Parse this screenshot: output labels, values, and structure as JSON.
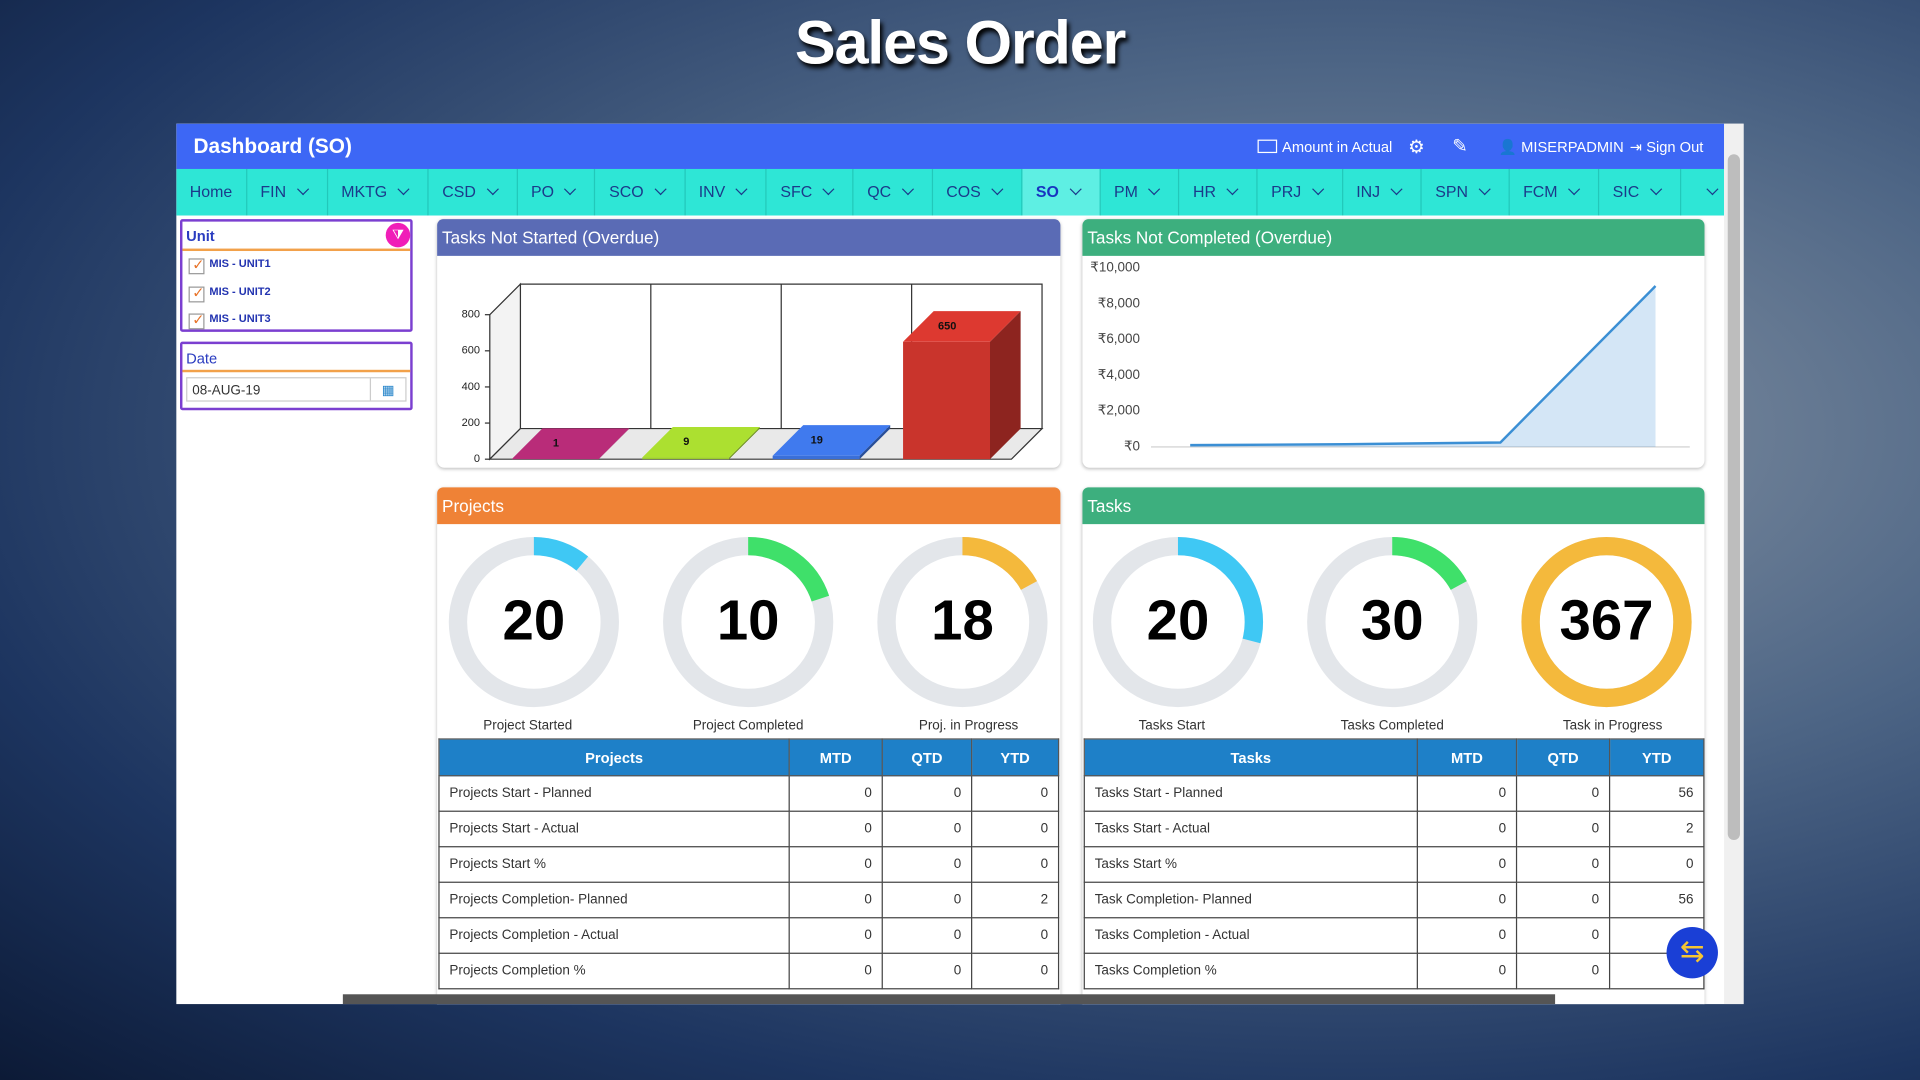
{
  "page_title": "Sales Order",
  "header": {
    "title": "Dashboard (SO)",
    "amount": "Amount in Actual",
    "user": "MISERPADMIN",
    "sign_out": "Sign Out"
  },
  "nav": {
    "items": [
      "Home",
      "FIN",
      "MKTG",
      "CSD",
      "PO",
      "SCO",
      "INV",
      "SFC",
      "QC",
      "COS",
      "SO",
      "PM",
      "HR",
      "PRJ",
      "INJ",
      "SPN",
      "FCM",
      "SIC"
    ],
    "active": 10
  },
  "filters": {
    "unit_label": "Unit",
    "units": [
      "MIS - UNIT1",
      "MIS - UNIT2",
      "MIS - UNIT3"
    ],
    "date_label": "Date",
    "date_value": "08-AUG-19"
  },
  "charts": [
    {
      "type": "bar3d",
      "title": "Tasks Not Started (Overdue)",
      "categories": [
        null,
        null,
        null,
        null
      ],
      "values": [
        1,
        9,
        19,
        650
      ],
      "colors": [
        "#a8286e",
        "#9ccc2c",
        "#3a6fd8",
        "#c9342c"
      ],
      "ylim": [
        0,
        800
      ],
      "yticks": [
        0,
        200,
        400,
        600,
        800
      ]
    },
    {
      "type": "line",
      "title": "Tasks Not Completed (Overdue)",
      "categories": [
        null,
        null,
        null,
        null
      ],
      "values": [
        100,
        150,
        250,
        9000
      ],
      "color": "#3b8fd4",
      "ylim": [
        0,
        10000
      ],
      "yticks": [
        {
          "value": 0,
          "label": "₹0"
        },
        {
          "value": 2000,
          "label": "₹2,000"
        },
        {
          "value": 4000,
          "label": "₹4,000"
        },
        {
          "value": 6000,
          "label": "₹6,000"
        },
        {
          "value": 8000,
          "label": "₹8,000"
        },
        {
          "value": 10000,
          "label": "₹10,000"
        }
      ]
    }
  ],
  "panels": [
    {
      "title": "Projects",
      "gauges": [
        {
          "value": 20,
          "label": "Project Started",
          "fill_percent": 11,
          "color": "#3fc8f4"
        },
        {
          "value": 10,
          "label": "Project Completed",
          "fill_percent": 20,
          "color": "#3fe06a"
        },
        {
          "value": 18,
          "label": "Proj. in Progress",
          "fill_percent": 17,
          "color": "#f4b93c"
        }
      ]
    },
    {
      "title": "Tasks",
      "gauges": [
        {
          "value": 20,
          "label": "Tasks Start",
          "fill_percent": 29,
          "color": "#3fc8f4"
        },
        {
          "value": 30,
          "label": "Tasks Completed",
          "fill_percent": 17,
          "color": "#3fe06a"
        },
        {
          "value": 367,
          "label": "Task in Progress",
          "fill_percent": 100,
          "color": "#f4b93c"
        }
      ]
    }
  ],
  "tables": [
    {
      "columns": [
        "Projects",
        "MTD",
        "QTD",
        "YTD"
      ],
      "rows": [
        [
          "Projects Start - Planned",
          0,
          0,
          0
        ],
        [
          "Projects Start - Actual",
          0,
          0,
          0
        ],
        [
          "Projects Start %",
          0,
          0,
          0
        ],
        [
          "Projects Completion- Planned",
          0,
          0,
          2
        ],
        [
          "Projects Completion - Actual",
          0,
          0,
          0
        ],
        [
          "Projects Completion %",
          0,
          0,
          0
        ]
      ]
    },
    {
      "columns": [
        "Tasks",
        "MTD",
        "QTD",
        "YTD"
      ],
      "rows": [
        [
          "Tasks Start - Planned",
          0,
          0,
          56
        ],
        [
          "Tasks Start - Actual",
          0,
          0,
          2
        ],
        [
          "Tasks Start %",
          0,
          0,
          0
        ],
        [
          "Task Completion- Planned",
          0,
          0,
          56
        ],
        [
          "Tasks Completion - Actual",
          0,
          0,
          null
        ],
        [
          "Tasks Completion %",
          0,
          0,
          null
        ]
      ]
    }
  ]
}
